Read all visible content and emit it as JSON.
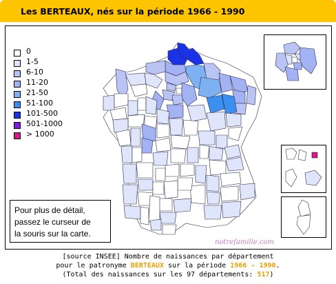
{
  "title": "Les BERTEAUX, nés sur la période 1966 - 1990",
  "legend": [
    {
      "label": "0",
      "color": "#ffffff"
    },
    {
      "label": "1-5",
      "color": "#dfe6fb"
    },
    {
      "label": "6-10",
      "color": "#b9c4f4"
    },
    {
      "label": "11-20",
      "color": "#a3b2f2"
    },
    {
      "label": "21-50",
      "color": "#7db1f2"
    },
    {
      "label": "51-100",
      "color": "#3b8ff0"
    },
    {
      "label": "101-500",
      "color": "#1a33e6"
    },
    {
      "label": "501-1000",
      "color": "#7b1fd6"
    },
    {
      "label": "> 1000",
      "color": "#e0128c"
    }
  ],
  "hint": {
    "line1": "Pour plus de détail,",
    "line2": "passez le curseur de",
    "line3": "la souris sur la carte."
  },
  "watermark": "notrefamille.com",
  "footer": {
    "line1_a": "[source INSEE] Nombre de naissances par département",
    "line2_a": "pour le patronyme ",
    "name": "BERTEAUX",
    "line2_b": " sur la période ",
    "start": "1966",
    "dash": " - ",
    "end": "1990",
    "line2_c": ".",
    "line3_a": "(Total des naissances sur les 97 départements: ",
    "total": "517",
    "line3_b": ")"
  }
}
